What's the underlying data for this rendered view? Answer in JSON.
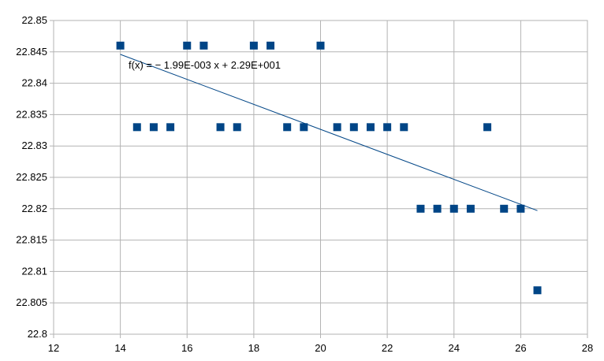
{
  "chart_data": {
    "type": "scatter",
    "title": "",
    "xlabel": "",
    "ylabel": "",
    "xlim": [
      12,
      28
    ],
    "ylim": [
      22.8,
      22.85
    ],
    "x_ticks": [
      "12",
      "14",
      "16",
      "18",
      "20",
      "22",
      "24",
      "26",
      "28"
    ],
    "y_ticks": [
      "22.8",
      "22.805",
      "22.81",
      "22.815",
      "22.82",
      "22.825",
      "22.83",
      "22.835",
      "22.84",
      "22.845",
      "22.85"
    ],
    "grid": true,
    "marker_color": "#004586",
    "trendline_color": "#004586",
    "series": [
      {
        "x": [
          14,
          14.5,
          15,
          15.5,
          16,
          16.5,
          17,
          17.5,
          18,
          18.5,
          19,
          19.5,
          20,
          20.5,
          21,
          21.5,
          22,
          22.5,
          23,
          23.5,
          24,
          24.5,
          25,
          25.5,
          26,
          26.5
        ],
        "y": [
          22.846,
          22.833,
          22.833,
          22.833,
          22.846,
          22.846,
          22.833,
          22.833,
          22.846,
          22.846,
          22.833,
          22.833,
          22.846,
          22.833,
          22.833,
          22.833,
          22.833,
          22.833,
          22.82,
          22.82,
          22.82,
          22.82,
          22.833,
          22.82,
          22.82,
          22.807
        ]
      }
    ],
    "trendline": {
      "equation": "f(x) = − 1.99E-003 x + 2.29E+001",
      "x_start": 14,
      "y_start": 22.8446,
      "x_end": 26.5,
      "y_end": 22.8197
    }
  }
}
